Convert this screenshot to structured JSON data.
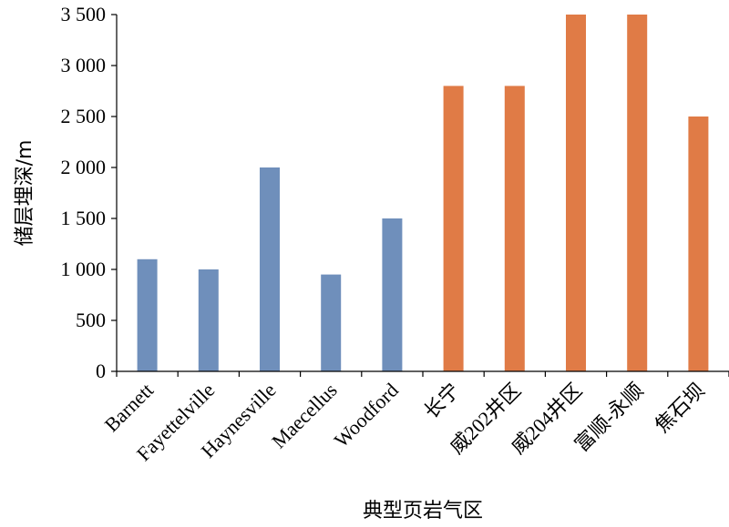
{
  "chart_data": {
    "type": "bar",
    "xlabel": "典型页岩气区",
    "ylabel": "储层埋深/m",
    "ylim": [
      0,
      3500
    ],
    "yticks": [
      {
        "value": 0,
        "label": "0"
      },
      {
        "value": 500,
        "label": "500"
      },
      {
        "value": 1000,
        "label": "1 000"
      },
      {
        "value": 1500,
        "label": "1 500"
      },
      {
        "value": 2000,
        "label": "2 000"
      },
      {
        "value": 2500,
        "label": "2 500"
      },
      {
        "value": 3000,
        "label": "3 000"
      },
      {
        "value": 3500,
        "label": "3 500"
      }
    ],
    "categories": [
      "Barnett",
      "Fayettelville",
      "Haynesville",
      "Maecellus",
      "Woodford",
      "长宁",
      "威202井区",
      "威204井区",
      "富顺-永顺",
      "焦石坝"
    ],
    "values": [
      1100,
      1000,
      2000,
      950,
      1500,
      2800,
      2800,
      3500,
      3500,
      2500
    ],
    "colors": [
      "#6f8fbb",
      "#6f8fbb",
      "#6f8fbb",
      "#6f8fbb",
      "#6f8fbb",
      "#e07b46",
      "#e07b46",
      "#e07b46",
      "#e07b46",
      "#e07b46"
    ],
    "grid": false
  }
}
